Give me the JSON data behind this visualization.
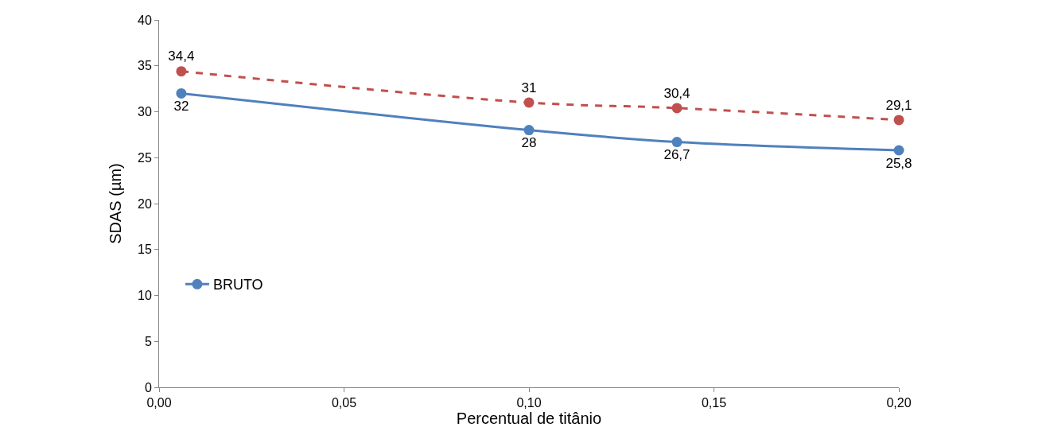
{
  "chart_data": {
    "type": "line",
    "xlabel": "Percentual de titânio",
    "ylabel": "SDAS (µm)",
    "x": [
      0.006,
      0.1,
      0.14,
      0.2
    ],
    "series": [
      {
        "name": "BRUTO",
        "color": "#4f81bd",
        "values": [
          32,
          28,
          26.7,
          25.8
        ],
        "value_labels": [
          "32",
          "28",
          "26,7",
          "25,8"
        ],
        "line_style": "solid"
      },
      {
        "color": "#c0504d",
        "values": [
          34.4,
          31,
          30.4,
          29.1
        ],
        "value_labels": [
          "34,4",
          "31",
          "30,4",
          "29,1"
        ],
        "line_style": "dashed"
      }
    ],
    "xlim": [
      0,
      0.2
    ],
    "xticks": [
      {
        "value": 0,
        "label": "0,00"
      },
      {
        "value": 0.05,
        "label": "0,05"
      },
      {
        "value": 0.1,
        "label": "0,10"
      },
      {
        "value": 0.15,
        "label": "0,15"
      },
      {
        "value": 0.2,
        "label": "0,20"
      }
    ],
    "ylim": [
      0,
      40
    ],
    "yticks": [
      0,
      5,
      10,
      15,
      20,
      25,
      30,
      35,
      40
    ],
    "marker": "circle",
    "legend": "left"
  }
}
